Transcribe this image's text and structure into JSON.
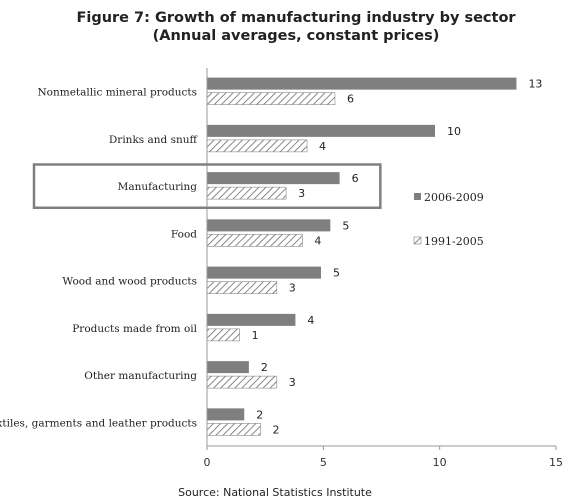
{
  "chart_data": {
    "type": "bar",
    "orientation": "horizontal",
    "title": "Figure  7: Growth of manufacturing industry by sector",
    "subtitle": "(Annual averages, constant prices)",
    "categories": [
      "Nonmetallic mineral products",
      "Drinks and snuff",
      "Manufacturing",
      "Food",
      "Wood and wood products",
      "Products made from oil",
      "Other manufacturing",
      "Textiles, garments and leather products"
    ],
    "series": [
      {
        "name": "2006-2009",
        "values": [
          13.3,
          9.8,
          5.7,
          5.3,
          4.9,
          3.8,
          1.8,
          1.6
        ],
        "labels": [
          "13",
          "10",
          "6",
          "5",
          "5",
          "4",
          "2",
          "2"
        ],
        "color": "#7f7f7f",
        "pattern": "solid"
      },
      {
        "name": "1991-2005",
        "values": [
          5.5,
          4.3,
          3.4,
          4.1,
          3.0,
          1.4,
          3.0,
          2.3
        ],
        "labels": [
          "6",
          "4",
          "3",
          "4",
          "3",
          "1",
          "3",
          "2"
        ],
        "color": "#7f7f7f",
        "pattern": "hatched"
      }
    ],
    "xlim": [
      0,
      15
    ],
    "xticks": [
      "0",
      "5",
      "10",
      "15"
    ],
    "highlighted_category": "Manufacturing",
    "legend_position": "right",
    "grid": false,
    "source": "Source: National Statistics Institute"
  }
}
